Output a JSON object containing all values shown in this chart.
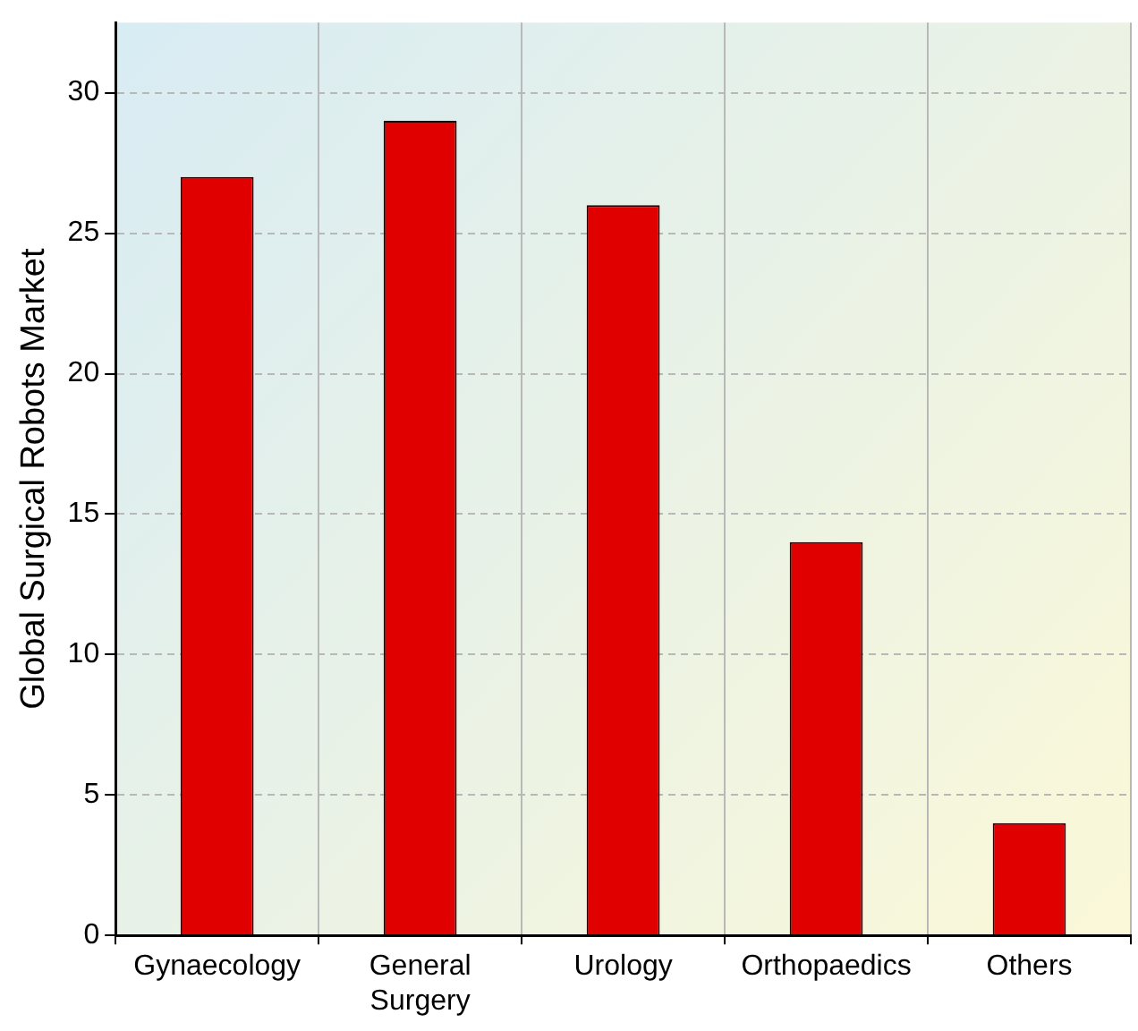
{
  "chart_data": {
    "type": "bar",
    "ylabel": "Global Surgical Robots Market",
    "categories": [
      "Gynaecology",
      "General Surgery",
      "Urology",
      "Orthopaedics",
      "Others"
    ],
    "values": [
      27,
      29,
      26,
      14,
      4
    ],
    "color": "#e00000",
    "ylim": [
      0,
      32.5
    ],
    "yticks": [
      0,
      5,
      10,
      15,
      20,
      25,
      30
    ],
    "grid": true,
    "legend": false
  }
}
